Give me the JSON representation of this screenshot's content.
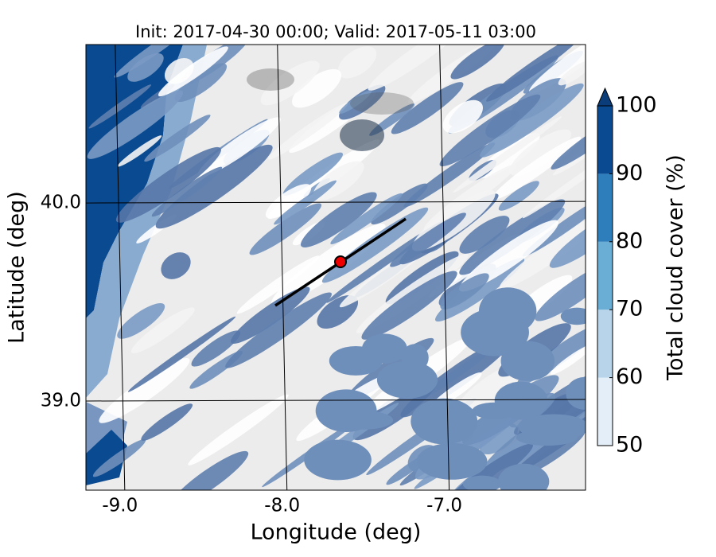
{
  "chart_data": {
    "type": "map",
    "title": "Init: 2017-04-30 00:00; Valid: 2017-05-11 03:00",
    "xlabel": "Longitude (deg)",
    "ylabel": "Latitude (deg)",
    "xlim": [
      -9.21,
      -6.13
    ],
    "ylim": [
      38.55,
      40.8
    ],
    "xticks": [
      {
        "value": -9,
        "label": "-9.0"
      },
      {
        "value": -8,
        "label": "-8.0"
      },
      {
        "value": -7,
        "label": "-7.0"
      }
    ],
    "yticks": [
      {
        "value": 39,
        "label": "39.0"
      },
      {
        "value": 40,
        "label": "40.0"
      }
    ],
    "grid": true,
    "colorbar": {
      "label": "Total cloud cover (%)",
      "ticks": [
        50,
        60,
        70,
        80,
        90,
        100
      ],
      "colors": [
        "#e4eef9",
        "#b7d4ea",
        "#6aaed6",
        "#2e7ebc",
        "#0a4a90"
      ],
      "extend_color": "#0a3d7a"
    }
  }
}
